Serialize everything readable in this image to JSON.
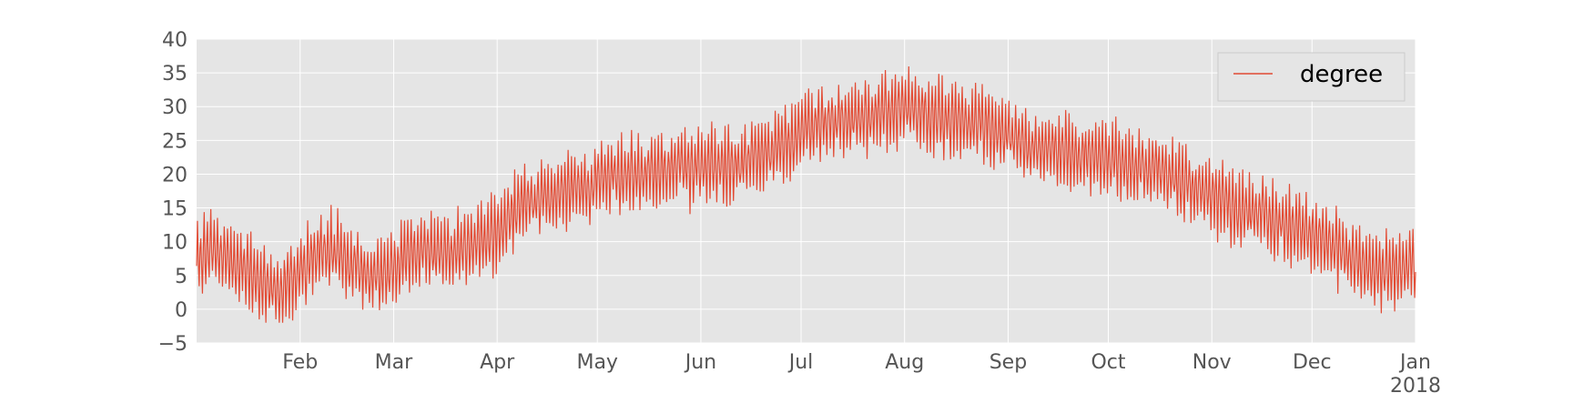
{
  "chart_data": {
    "type": "line",
    "title": "",
    "xlabel": "",
    "ylabel": "",
    "x_range": [
      "2017-01-01",
      "2018-01-01"
    ],
    "ylim": [
      -5,
      40
    ],
    "yticks": [
      -5,
      0,
      5,
      10,
      15,
      20,
      25,
      30,
      35,
      40
    ],
    "xticks": [
      {
        "date": "2017-02-01",
        "label": "Feb"
      },
      {
        "date": "2017-03-01",
        "label": "Mar"
      },
      {
        "date": "2017-04-01",
        "label": "Apr"
      },
      {
        "date": "2017-05-01",
        "label": "May"
      },
      {
        "date": "2017-06-01",
        "label": "Jun"
      },
      {
        "date": "2017-07-01",
        "label": "Jul"
      },
      {
        "date": "2017-08-01",
        "label": "Aug"
      },
      {
        "date": "2017-09-01",
        "label": "Sep"
      },
      {
        "date": "2017-10-01",
        "label": "Oct"
      },
      {
        "date": "2017-11-01",
        "label": "Nov"
      },
      {
        "date": "2017-12-01",
        "label": "Dec"
      },
      {
        "date": "2018-01-01",
        "label": "Jan\n2018"
      }
    ],
    "grid": true,
    "legend": {
      "placement": "top-right",
      "entries": [
        "degree"
      ]
    },
    "background": "#e5e5e5",
    "series": [
      {
        "name": "degree",
        "color": "#e24a33",
        "points": [
          [
            "2017-01-01",
            7
          ],
          [
            "2017-01-05",
            9
          ],
          [
            "2017-01-10",
            8
          ],
          [
            "2017-01-15",
            6
          ],
          [
            "2017-01-20",
            4
          ],
          [
            "2017-01-25",
            3
          ],
          [
            "2017-01-31",
            5
          ],
          [
            "2017-02-05",
            8
          ],
          [
            "2017-02-10",
            9
          ],
          [
            "2017-02-15",
            7
          ],
          [
            "2017-02-20",
            6
          ],
          [
            "2017-02-25",
            5
          ],
          [
            "2017-03-01",
            6
          ],
          [
            "2017-03-05",
            8
          ],
          [
            "2017-03-10",
            9
          ],
          [
            "2017-03-15",
            8
          ],
          [
            "2017-03-20",
            9
          ],
          [
            "2017-03-25",
            10
          ],
          [
            "2017-04-01",
            11
          ],
          [
            "2017-04-05",
            14
          ],
          [
            "2017-04-10",
            16
          ],
          [
            "2017-04-15",
            16
          ],
          [
            "2017-04-20",
            17
          ],
          [
            "2017-04-25",
            18
          ],
          [
            "2017-05-01",
            19
          ],
          [
            "2017-05-08",
            20
          ],
          [
            "2017-05-15",
            20
          ],
          [
            "2017-05-22",
            21
          ],
          [
            "2017-06-01",
            21
          ],
          [
            "2017-06-08",
            21
          ],
          [
            "2017-06-15",
            22
          ],
          [
            "2017-06-22",
            23
          ],
          [
            "2017-07-01",
            26
          ],
          [
            "2017-07-08",
            28
          ],
          [
            "2017-07-15",
            28
          ],
          [
            "2017-07-22",
            29
          ],
          [
            "2017-08-01",
            30
          ],
          [
            "2017-08-08",
            29
          ],
          [
            "2017-08-15",
            28
          ],
          [
            "2017-08-22",
            28
          ],
          [
            "2017-09-01",
            26
          ],
          [
            "2017-09-08",
            24
          ],
          [
            "2017-09-15",
            24
          ],
          [
            "2017-09-22",
            23
          ],
          [
            "2017-10-01",
            22
          ],
          [
            "2017-10-08",
            21
          ],
          [
            "2017-10-15",
            21
          ],
          [
            "2017-10-22",
            19
          ],
          [
            "2017-11-01",
            17
          ],
          [
            "2017-11-08",
            15
          ],
          [
            "2017-11-15",
            14
          ],
          [
            "2017-11-22",
            13
          ],
          [
            "2017-12-01",
            11
          ],
          [
            "2017-12-08",
            9
          ],
          [
            "2017-12-15",
            7
          ],
          [
            "2017-12-22",
            6
          ],
          [
            "2018-01-01",
            7
          ]
        ],
        "daily_swing": 5.5
      }
    ]
  }
}
